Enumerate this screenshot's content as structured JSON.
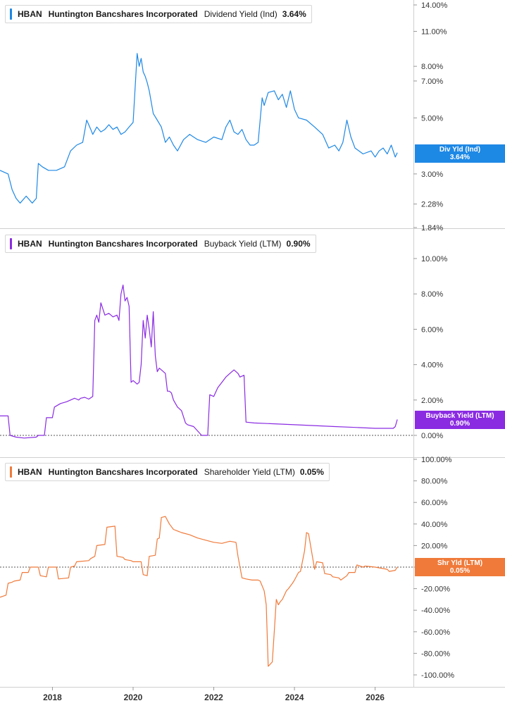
{
  "chart_data": [
    {
      "type": "line",
      "ticker": "HBAN",
      "company": "Huntington Bancshares Incorporated",
      "metric": "Dividend Yield (Ind)",
      "current_value": "3.64%",
      "tag_label": "Div Yld (Ind)",
      "color": "#1e88e5",
      "scale": "log",
      "ylim": [
        1.84,
        14.0
      ],
      "y_ticks": [
        14.0,
        11.0,
        8.0,
        7.0,
        5.0,
        3.0,
        2.28,
        1.84
      ],
      "y_tick_labels": [
        "14.00%",
        "11.00%",
        "8.00%",
        "7.00%",
        "5.00%",
        "3.00%",
        "2.28%",
        "1.84%"
      ],
      "zero_line": false,
      "series": [
        {
          "x": [
            2016.7,
            2016.9,
            2017.0,
            2017.1,
            2017.2,
            2017.35,
            2017.5,
            2017.6,
            2017.65,
            2017.75,
            2017.9,
            2018.1,
            2018.3,
            2018.45,
            2018.6,
            2018.75,
            2018.85,
            2018.95,
            2019.0,
            2019.1,
            2019.2,
            2019.3,
            2019.4,
            2019.5,
            2019.6,
            2019.7,
            2019.8,
            2019.9,
            2020.0,
            2020.1,
            2020.15,
            2020.2,
            2020.25,
            2020.3,
            2020.35,
            2020.4,
            2020.5,
            2020.6,
            2020.7,
            2020.8,
            2020.9,
            2021.0,
            2021.1,
            2021.25,
            2021.4,
            2021.6,
            2021.8,
            2022.0,
            2022.2,
            2022.3,
            2022.4,
            2022.5,
            2022.6,
            2022.7,
            2022.8,
            2022.9,
            2023.0,
            2023.1,
            2023.2,
            2023.25,
            2023.35,
            2023.5,
            2023.6,
            2023.7,
            2023.8,
            2023.9,
            2024.0,
            2024.1,
            2024.3,
            2024.5,
            2024.7,
            2024.85,
            2025.0,
            2025.1,
            2025.2,
            2025.3,
            2025.4,
            2025.5,
            2025.7,
            2025.9,
            2026.0,
            2026.1,
            2026.2,
            2026.3,
            2026.4,
            2026.5,
            2026.55
          ],
          "values": [
            3.1,
            3.0,
            2.6,
            2.4,
            2.3,
            2.45,
            2.3,
            2.4,
            3.3,
            3.2,
            3.1,
            3.1,
            3.2,
            3.7,
            3.9,
            4.0,
            4.9,
            4.5,
            4.3,
            4.6,
            4.4,
            4.5,
            4.7,
            4.5,
            4.6,
            4.3,
            4.4,
            4.6,
            4.8,
            9.0,
            8.0,
            8.6,
            7.6,
            7.3,
            6.9,
            6.4,
            5.2,
            4.9,
            4.6,
            4.0,
            4.2,
            3.9,
            3.7,
            4.1,
            4.3,
            4.1,
            4.0,
            4.2,
            4.1,
            4.6,
            4.9,
            4.4,
            4.3,
            4.5,
            4.1,
            3.9,
            3.9,
            4.0,
            6.0,
            5.6,
            6.3,
            6.4,
            5.9,
            6.2,
            5.5,
            6.4,
            5.4,
            5.0,
            4.9,
            4.6,
            4.3,
            3.8,
            3.9,
            3.7,
            4.0,
            4.9,
            4.2,
            3.8,
            3.6,
            3.7,
            3.5,
            3.7,
            3.8,
            3.6,
            3.9,
            3.5,
            3.64
          ]
        }
      ]
    },
    {
      "type": "line",
      "ticker": "HBAN",
      "company": "Huntington Bancshares Incorporated",
      "metric": "Buyback Yield (LTM)",
      "current_value": "0.90%",
      "tag_label": "Buyback Yield (LTM)",
      "color": "#8a2be2",
      "scale": "linear",
      "ylim": [
        -0.7,
        12.0
      ],
      "y_ticks": [
        10.0,
        8.0,
        6.0,
        4.0,
        2.0,
        0.0
      ],
      "y_tick_labels": [
        "10.00%",
        "8.00%",
        "6.00%",
        "4.00%",
        "2.00%",
        "0.00%"
      ],
      "zero_line": true,
      "series": [
        {
          "x": [
            2016.7,
            2016.9,
            2016.95,
            2017.1,
            2017.3,
            2017.6,
            2017.65,
            2017.8,
            2017.85,
            2018.0,
            2018.05,
            2018.2,
            2018.35,
            2018.45,
            2018.55,
            2018.6,
            2018.65,
            2018.7,
            2018.8,
            2018.9,
            2019.0,
            2019.05,
            2019.1,
            2019.15,
            2019.2,
            2019.3,
            2019.4,
            2019.5,
            2019.6,
            2019.65,
            2019.7,
            2019.75,
            2019.8,
            2019.85,
            2019.9,
            2019.95,
            2020.0,
            2020.1,
            2020.15,
            2020.2,
            2020.25,
            2020.3,
            2020.35,
            2020.4,
            2020.45,
            2020.5,
            2020.55,
            2020.6,
            2020.65,
            2020.7,
            2020.8,
            2020.85,
            2020.9,
            2020.95,
            2021.0,
            2021.1,
            2021.2,
            2021.3,
            2021.35,
            2021.5,
            2021.7,
            2021.8,
            2021.85,
            2021.9,
            2022.0,
            2022.1,
            2022.2,
            2022.3,
            2022.4,
            2022.5,
            2022.6,
            2022.65,
            2022.75,
            2022.8,
            2023.0,
            2024.0,
            2025.0,
            2025.5,
            2026.0,
            2026.45,
            2026.5,
            2026.55
          ],
          "values": [
            1.1,
            1.1,
            0.0,
            -0.1,
            -0.15,
            -0.1,
            0.0,
            0.0,
            1.0,
            1.0,
            1.6,
            1.8,
            1.9,
            2.0,
            2.1,
            2.05,
            2.0,
            2.1,
            2.15,
            2.05,
            2.2,
            6.5,
            6.8,
            6.4,
            7.5,
            6.8,
            6.9,
            6.7,
            6.8,
            6.5,
            8.0,
            8.5,
            7.6,
            7.8,
            7.3,
            3.0,
            3.1,
            2.9,
            3.0,
            4.0,
            6.5,
            5.5,
            6.8,
            6.0,
            5.0,
            7.0,
            4.5,
            3.6,
            3.8,
            3.7,
            3.5,
            2.5,
            2.5,
            2.4,
            2.0,
            1.6,
            1.4,
            0.7,
            0.6,
            0.5,
            0.0,
            0.0,
            0.0,
            2.3,
            2.2,
            2.7,
            3.0,
            3.3,
            3.5,
            3.7,
            3.5,
            3.3,
            3.4,
            0.75,
            0.7,
            0.6,
            0.5,
            0.45,
            0.4,
            0.4,
            0.5,
            0.9
          ]
        }
      ]
    },
    {
      "type": "line",
      "ticker": "HBAN",
      "company": "Huntington Bancshares Incorporated",
      "metric": "Shareholder Yield (LTM)",
      "current_value": "0.05%",
      "tag_label": "Shr Yld (LTM)",
      "color": "#f07a3a",
      "scale": "linear",
      "ylim": [
        -110,
        108
      ],
      "y_ticks": [
        100,
        80,
        60,
        40,
        20,
        0,
        -20,
        -40,
        -60,
        -80,
        -100
      ],
      "y_tick_labels": [
        "100.00%",
        "80.00%",
        "60.00%",
        "40.00%",
        "20.00%",
        "0.00%",
        "-20.00%",
        "-40.00%",
        "-60.00%",
        "-80.00%",
        "-100.00%"
      ],
      "zero_line": true,
      "series": [
        {
          "x": [
            2016.7,
            2016.85,
            2016.9,
            2017.0,
            2017.05,
            2017.2,
            2017.25,
            2017.4,
            2017.45,
            2017.65,
            2017.7,
            2017.85,
            2017.9,
            2018.1,
            2018.15,
            2018.4,
            2018.45,
            2018.55,
            2018.6,
            2018.9,
            2018.95,
            2019.05,
            2019.1,
            2019.3,
            2019.35,
            2019.55,
            2019.6,
            2019.75,
            2019.8,
            2019.95,
            2020.0,
            2020.2,
            2020.25,
            2020.35,
            2020.4,
            2020.55,
            2020.6,
            2020.65,
            2020.7,
            2020.8,
            2020.9,
            2021.0,
            2021.2,
            2021.4,
            2021.6,
            2021.8,
            2022.0,
            2022.2,
            2022.4,
            2022.55,
            2022.6,
            2022.7,
            2022.8,
            2022.95,
            2023.1,
            2023.15,
            2023.25,
            2023.3,
            2023.35,
            2023.45,
            2023.5,
            2023.55,
            2023.6,
            2023.65,
            2023.7,
            2023.8,
            2023.85,
            2023.95,
            2024.0,
            2024.1,
            2024.15,
            2024.25,
            2024.3,
            2024.35,
            2024.5,
            2024.55,
            2024.7,
            2024.75,
            2024.9,
            2024.95,
            2025.1,
            2025.15,
            2025.3,
            2025.35,
            2025.5,
            2025.55,
            2025.7,
            2025.75,
            2026.0,
            2026.3,
            2026.35,
            2026.5,
            2026.55
          ],
          "values": [
            -28,
            -26,
            -15,
            -14,
            -13,
            -12,
            -5,
            -5,
            0,
            0,
            -8,
            -9,
            0,
            0,
            -11,
            -10,
            0,
            1,
            5,
            6,
            8,
            10,
            20,
            21,
            37,
            38,
            10,
            9,
            7,
            6,
            5,
            5,
            -7,
            -8,
            10,
            11,
            26,
            27,
            46,
            47,
            40,
            35,
            32,
            30,
            27,
            25,
            23,
            22,
            24,
            23,
            10,
            -10,
            -11,
            -12,
            -12,
            -13,
            -22,
            -35,
            -92,
            -88,
            -60,
            -30,
            -35,
            -32,
            -30,
            -22,
            -20,
            -15,
            -12,
            -5,
            -4,
            15,
            32,
            31,
            -2,
            5,
            4,
            -6,
            -7,
            -9,
            -10,
            -12,
            -8,
            -5,
            -5,
            2,
            0,
            1,
            0,
            -2,
            -4,
            -3,
            0.05
          ]
        }
      ]
    }
  ],
  "x_axis": {
    "ticks": [
      2018,
      2020,
      2022,
      2024,
      2026
    ],
    "labels": [
      "2018",
      "2020",
      "2022",
      "2024",
      "2026"
    ],
    "range": [
      2016.7,
      2026.95
    ]
  }
}
